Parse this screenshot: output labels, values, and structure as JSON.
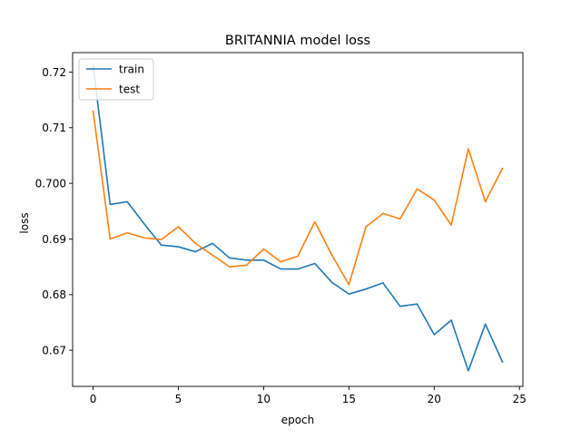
{
  "chart_data": {
    "type": "line",
    "title": "BRITANNIA model loss",
    "xlabel": "epoch",
    "ylabel": "loss",
    "xlim": [
      -1.2,
      25.2
    ],
    "ylim": [
      0.6635,
      0.7235
    ],
    "x_ticks": [
      0,
      5,
      10,
      15,
      20,
      25
    ],
    "y_ticks": [
      0.67,
      0.68,
      0.69,
      0.7,
      0.71,
      0.72
    ],
    "y_tick_labels": [
      "0.67",
      "0.68",
      "0.69",
      "0.700",
      "0.71",
      "0.72"
    ],
    "grid": false,
    "legend_position": "upper left",
    "x": [
      0,
      1,
      2,
      3,
      4,
      5,
      6,
      7,
      8,
      9,
      10,
      11,
      12,
      13,
      14,
      15,
      16,
      17,
      18,
      19,
      20,
      21,
      22,
      24,
      23
    ],
    "series": [
      {
        "name": "train",
        "color": "#1f77b4",
        "values": [
          0.7212,
          0.6962,
          0.6967,
          0.6927,
          0.6889,
          0.6886,
          0.6877,
          0.6892,
          0.6866,
          0.6862,
          0.6862,
          0.6846,
          0.6846,
          0.6856,
          0.6822,
          0.6801,
          0.681,
          0.6821,
          0.6779,
          0.6783,
          0.6728,
          0.6754,
          0.6663,
          0.6679,
          0.6747
        ]
      },
      {
        "name": "test",
        "color": "#ff7f0e",
        "values": [
          0.713,
          0.69,
          0.6911,
          0.6902,
          0.6899,
          0.6922,
          0.6892,
          0.6871,
          0.685,
          0.6853,
          0.6882,
          0.6859,
          0.6869,
          0.6931,
          0.6871,
          0.6818,
          0.6922,
          0.6946,
          0.6936,
          0.699,
          0.697,
          0.6925,
          0.7062,
          0.7027,
          0.6967
        ]
      }
    ]
  }
}
